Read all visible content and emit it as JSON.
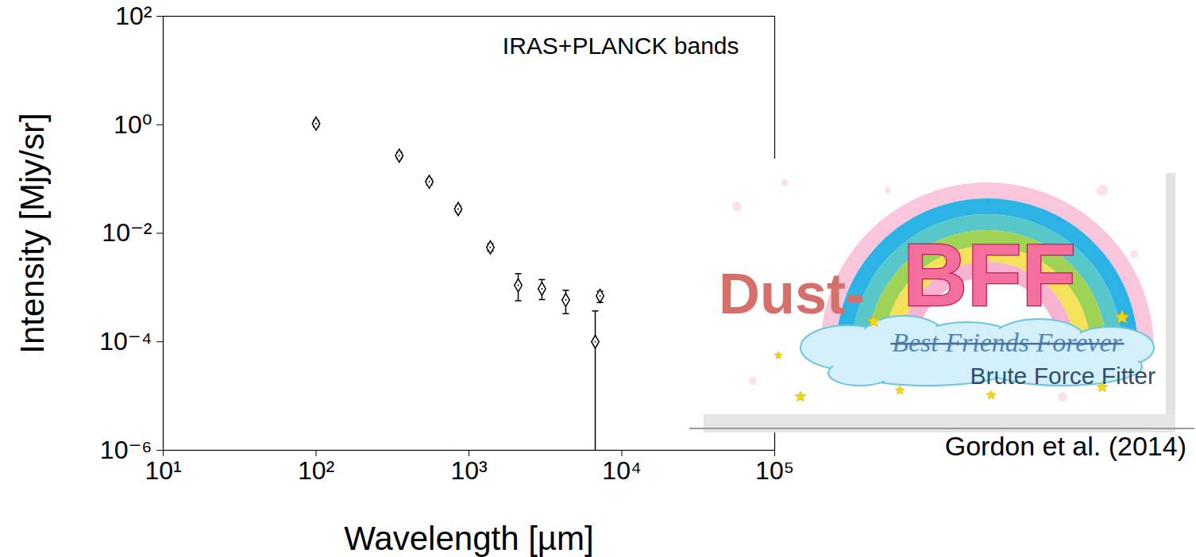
{
  "chart_data": {
    "type": "scatter",
    "annotation": "IRAS+PLANCK bands",
    "xlabel": "Wavelength [µm]",
    "ylabel": "Intensity [Mjy/sr]",
    "x": [
      100,
      350,
      550,
      850,
      1380,
      2100,
      3000,
      4300,
      6700,
      7200
    ],
    "values": [
      1.05,
      0.27,
      0.089,
      0.028,
      0.0055,
      0.0011,
      0.00095,
      0.00059,
      0.0001,
      0.0007
    ],
    "error_low": [
      0.92,
      0.24,
      0.078,
      0.025,
      0.0047,
      0.00057,
      0.0006,
      0.00033,
      1e-07,
      0.00053
    ],
    "error_high": [
      1.2,
      0.31,
      0.1,
      0.032,
      0.0064,
      0.0018,
      0.0014,
      0.00089,
      0.00037,
      0.00085
    ],
    "color": "#000000",
    "marker": "diamond",
    "log": true,
    "grid": false,
    "xlim": [
      10,
      100000
    ],
    "ylim": [
      1e-06,
      100
    ],
    "xticks": [
      {
        "value": 10,
        "label": "10¹"
      },
      {
        "value": 100,
        "label": "10²"
      },
      {
        "value": 1000,
        "label": "10³"
      },
      {
        "value": 10000,
        "label": "10⁴"
      },
      {
        "value": 100000,
        "label": "10⁵"
      }
    ],
    "yticks": [
      {
        "value": 1e-06,
        "label": "10⁻⁶"
      },
      {
        "value": 0.0001,
        "label": "10⁻⁴"
      },
      {
        "value": 0.01,
        "label": "10⁻²"
      },
      {
        "value": 1,
        "label": "10⁰"
      },
      {
        "value": 100,
        "label": "10²"
      }
    ]
  },
  "inset": {
    "logo_prefix": "Dust-",
    "logo": "BFF",
    "struck_text": "Best Friends Forever",
    "logo_subtitle": "Brute Force Fitter",
    "credit": "Gordon et al. (2014)"
  }
}
